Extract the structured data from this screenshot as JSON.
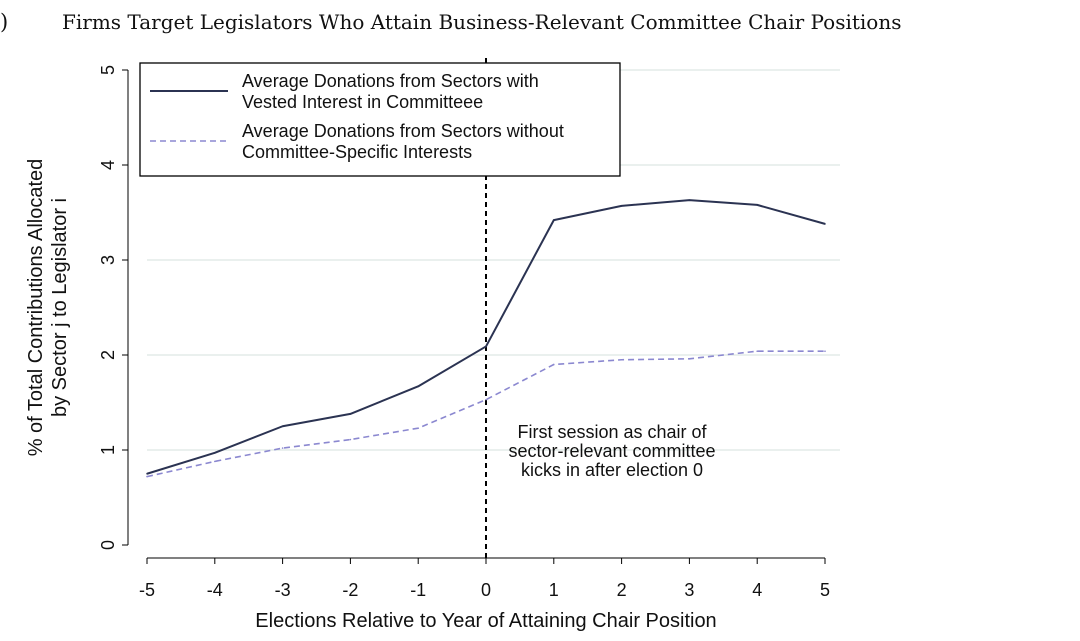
{
  "panel_label": ")",
  "chart_data": {
    "type": "line",
    "title": "Firms Target Legislators Who Attain Business-Relevant Committee Chair Positions",
    "xlabel": "Elections Relative to Year of Attaining Chair Position",
    "ylabel_line1": "% of Total Contributions Allocated",
    "ylabel_line2": "by Sector j to Legislator i",
    "x": [
      -5,
      -4,
      -3,
      -2,
      -1,
      0,
      1,
      2,
      3,
      4,
      5
    ],
    "xlim": [
      -5,
      5
    ],
    "ylim": [
      0,
      5
    ],
    "yticks": [
      0,
      1,
      2,
      3,
      4,
      5
    ],
    "grid": true,
    "legend_position": "top-left",
    "series": [
      {
        "name_line1": "Average Donations from Sectors with",
        "name_line2": "Vested Interest in Committeee",
        "style": "solid",
        "color": "#2b3352",
        "values": [
          0.75,
          0.97,
          1.25,
          1.38,
          1.67,
          2.09,
          3.42,
          3.57,
          3.63,
          3.58,
          3.38
        ]
      },
      {
        "name_line1": "Average Donations from Sectors without",
        "name_line2": "Committee-Specific Interests",
        "style": "dashed",
        "color": "#8b88d0",
        "values": [
          0.72,
          0.88,
          1.02,
          1.11,
          1.23,
          1.53,
          1.9,
          1.95,
          1.96,
          2.04,
          2.04
        ]
      }
    ],
    "vline": {
      "x": 0,
      "style": "dashed",
      "color": "#000000"
    },
    "annotation": [
      "First session as chair of",
      "sector-relevant committee",
      "kicks in after election 0"
    ]
  }
}
